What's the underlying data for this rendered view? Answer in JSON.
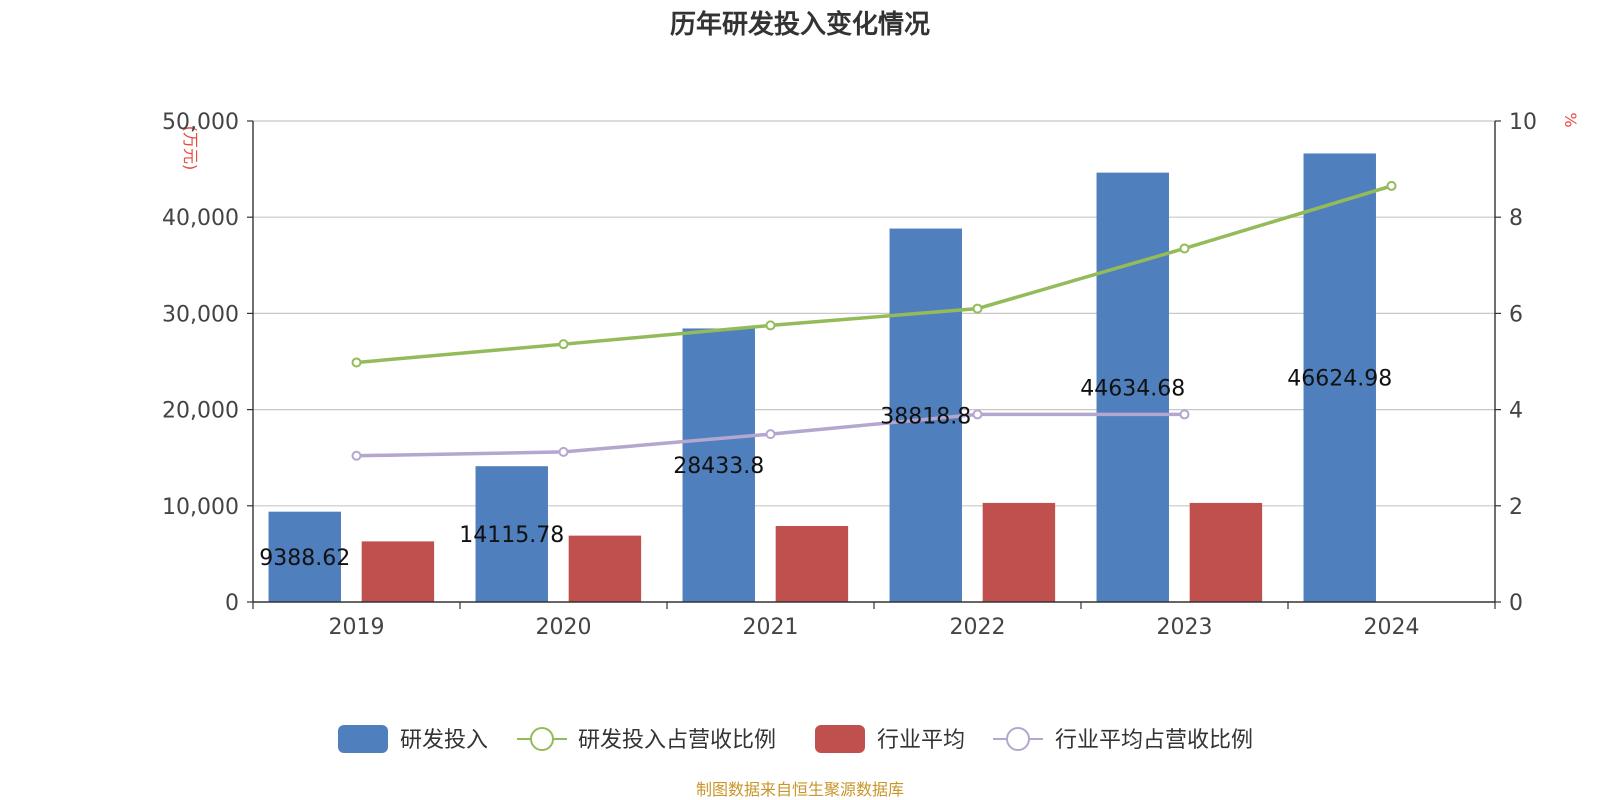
{
  "chart_data": {
    "type": "bar",
    "title": "历年研发投入变化情况",
    "categories": [
      "2019",
      "2020",
      "2021",
      "2022",
      "2023",
      "2024"
    ],
    "left_axis": {
      "unit": "(万元)",
      "min": 0,
      "max": 50000,
      "ticks": [
        0,
        10000,
        20000,
        30000,
        40000,
        50000
      ],
      "tick_labels": [
        "0",
        "10,000",
        "20,000",
        "30,000",
        "40,000",
        "50,000"
      ]
    },
    "right_axis": {
      "unit": "%",
      "min": 0,
      "max": 10,
      "ticks": [
        0,
        2,
        4,
        6,
        8,
        10
      ],
      "tick_labels": [
        "0",
        "2",
        "4",
        "6",
        "8",
        "10"
      ]
    },
    "series": [
      {
        "name": "研发投入",
        "kind": "bar",
        "axis": "left",
        "color": "#4f7fbd",
        "values": [
          9388.62,
          14115.78,
          28433.8,
          38818.8,
          44634.68,
          46624.98
        ],
        "labels": [
          "9388.62",
          "14115.78",
          "28433.8",
          "38818.8",
          "44634.68",
          "46624.98"
        ]
      },
      {
        "name": "研发投入占营收比例",
        "kind": "line",
        "axis": "right",
        "color": "#94bb5a",
        "values": [
          4.98,
          5.36,
          5.75,
          6.1,
          7.35,
          8.65
        ]
      },
      {
        "name": "行业平均",
        "kind": "bar",
        "axis": "left",
        "color": "#c0504d",
        "values": [
          6300,
          6900,
          7900,
          10300,
          10300,
          null
        ]
      },
      {
        "name": "行业平均占营收比例",
        "kind": "line",
        "axis": "right",
        "color": "#b3a6cf",
        "values": [
          3.04,
          3.12,
          3.49,
          3.9,
          3.9,
          null
        ]
      }
    ],
    "legend": [
      "研发投入",
      "研发投入占营收比例",
      "行业平均",
      "行业平均占营收比例"
    ],
    "source": "制图数据来自恒生聚源数据库"
  }
}
